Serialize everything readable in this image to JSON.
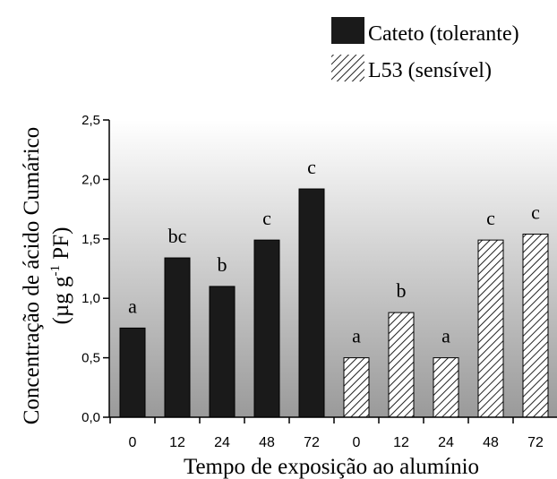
{
  "chart_data": {
    "type": "bar",
    "categories": [
      "0",
      "12",
      "24",
      "48",
      "72",
      "0",
      "12",
      "24",
      "48",
      "72"
    ],
    "series": [
      {
        "name": "Cateto (tolerante)",
        "fill": "solid",
        "values": [
          0.75,
          1.34,
          1.1,
          1.49,
          1.92,
          null,
          null,
          null,
          null,
          null
        ],
        "letters": [
          "a",
          "bc",
          "b",
          "c",
          "c",
          "",
          "",
          "",
          "",
          ""
        ]
      },
      {
        "name": "L53 (sensível)",
        "fill": "hatched",
        "values": [
          null,
          null,
          null,
          null,
          null,
          0.5,
          0.88,
          0.5,
          1.49,
          1.54
        ],
        "letters": [
          "",
          "",
          "",
          "",
          "",
          "a",
          "b",
          "a",
          "c",
          "c"
        ]
      }
    ],
    "ylim": [
      0,
      2.5
    ],
    "yticks": [
      "0,0",
      "0,5",
      "1,0",
      "1,5",
      "2,0",
      "2,5"
    ],
    "ylabel_line1": "Concentração de ácido Cumárico",
    "ylabel_line2_prefix": "(µg g",
    "ylabel_line2_sup": "-1",
    "ylabel_line2_suffix": " PF)",
    "xlabel": "Tempo de exposição ao alumínio",
    "legend_position": "top-right",
    "background": "gradient",
    "colors": {
      "bar_solid": "#1a1a1a",
      "hatch": "#222222",
      "axis": "#000000",
      "gradient_top": "#ffffff",
      "gradient_bottom": "#9a9a9a"
    }
  }
}
